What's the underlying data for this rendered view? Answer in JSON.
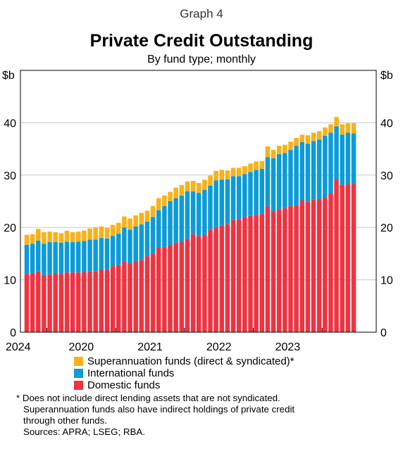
{
  "header": {
    "graph_label": "Graph 4",
    "title": "Private Credit Outstanding",
    "subtitle": "By fund type; monthly"
  },
  "colors": {
    "domestic": "#ef3340",
    "international": "#0a9bd8",
    "superannuation": "#fbb118",
    "axis": "#000000",
    "grid": "#c8c8c8"
  },
  "chart_data": {
    "type": "bar",
    "stacked": true,
    "title": "Private Credit Outstanding",
    "subtitle": "By fund type; monthly",
    "ylabel_left": "$b",
    "ylabel_right": "$b",
    "ylim": [
      0,
      50
    ],
    "yticks": [
      0,
      10,
      20,
      30,
      40
    ],
    "xtick_labels": [
      "2020",
      "2021",
      "2022",
      "2023",
      "2024"
    ],
    "grid": true,
    "legend_position": "bottom",
    "categories": [
      "2019-09",
      "2019-10",
      "2019-11",
      "2019-12",
      "2020-01",
      "2020-02",
      "2020-03",
      "2020-04",
      "2020-05",
      "2020-06",
      "2020-07",
      "2020-08",
      "2020-09",
      "2020-10",
      "2020-11",
      "2020-12",
      "2021-01",
      "2021-02",
      "2021-03",
      "2021-04",
      "2021-05",
      "2021-06",
      "2021-07",
      "2021-08",
      "2021-09",
      "2021-10",
      "2021-11",
      "2021-12",
      "2022-01",
      "2022-02",
      "2022-03",
      "2022-04",
      "2022-05",
      "2022-06",
      "2022-07",
      "2022-08",
      "2022-09",
      "2022-10",
      "2022-11",
      "2022-12",
      "2023-01",
      "2023-02",
      "2023-03",
      "2023-04",
      "2023-05",
      "2023-06",
      "2023-07",
      "2023-08",
      "2023-09",
      "2023-10",
      "2023-11",
      "2023-12",
      "2024-01",
      "2024-02",
      "2024-03",
      "2024-04",
      "2024-05",
      "2024-06"
    ],
    "series": [
      {
        "name": "Domestic funds",
        "values": [
          11.1,
          11.3,
          11.6,
          10.9,
          11.0,
          11.3,
          11.1,
          11.4,
          11.4,
          11.4,
          11.5,
          11.6,
          11.6,
          11.9,
          11.9,
          12.6,
          12.8,
          13.5,
          13.1,
          13.5,
          13.8,
          14.5,
          15.0,
          16.2,
          16.3,
          16.6,
          17.1,
          17.2,
          17.8,
          18.7,
          18.3,
          18.6,
          19.5,
          19.9,
          20.4,
          20.6,
          21.4,
          21.6,
          22.0,
          22.2,
          22.4,
          22.6,
          24.0,
          23.1,
          23.5,
          23.7,
          24.1,
          24.2,
          25.2,
          24.9,
          25.3,
          25.4,
          25.8,
          26.6,
          29.1,
          28.1,
          28.3,
          28.3
        ]
      },
      {
        "name": "International funds",
        "values": [
          5.6,
          5.6,
          5.9,
          6.0,
          6.2,
          5.9,
          6.0,
          5.9,
          5.8,
          5.9,
          5.9,
          6.1,
          6.1,
          6.1,
          6.0,
          5.8,
          6.0,
          6.5,
          6.5,
          6.7,
          6.8,
          6.6,
          7.0,
          7.1,
          7.8,
          8.4,
          8.5,
          8.9,
          9.1,
          8.2,
          8.3,
          8.6,
          8.5,
          9.1,
          8.7,
          8.6,
          8.4,
          8.2,
          8.2,
          8.4,
          8.6,
          8.6,
          9.4,
          10.1,
          10.5,
          10.5,
          10.7,
          11.4,
          11.1,
          11.1,
          11.2,
          11.4,
          11.7,
          11.5,
          10.2,
          9.6,
          9.8,
          9.7
        ]
      },
      {
        "name": "Superannuation funds (direct & syndicated)*",
        "values": [
          1.9,
          1.8,
          2.2,
          2.2,
          2.0,
          1.9,
          1.8,
          2.1,
          1.9,
          1.9,
          2.0,
          2.1,
          2.3,
          2.2,
          2.0,
          2.1,
          2.1,
          2.1,
          2.1,
          2.1,
          2.2,
          2.1,
          2.1,
          2.3,
          2.0,
          1.8,
          2.0,
          2.0,
          1.9,
          2.0,
          1.9,
          1.9,
          1.9,
          1.8,
          1.9,
          1.7,
          1.6,
          1.6,
          1.5,
          1.6,
          1.6,
          1.5,
          2.1,
          1.6,
          1.6,
          1.6,
          1.6,
          1.5,
          1.4,
          1.6,
          1.6,
          1.6,
          1.6,
          1.6,
          1.8,
          2.0,
          1.8,
          1.9
        ]
      }
    ]
  },
  "legend": [
    {
      "label": "Superannuation funds (direct & syndicated)*",
      "color": "#fbb118"
    },
    {
      "label": "International funds",
      "color": "#0a9bd8"
    },
    {
      "label": "Domestic funds",
      "color": "#ef3340"
    }
  ],
  "notes": {
    "footnote_1": "* Does not include direct lending assets that are not syndicated.",
    "footnote_2": "Superannuation funds also have indirect holdings of private credit",
    "footnote_3": "through other funds.",
    "sources": "Sources: APRA; LSEG; RBA."
  }
}
